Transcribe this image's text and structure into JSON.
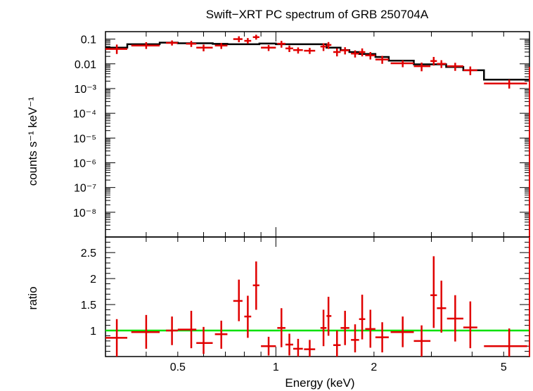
{
  "chart_data": [
    {
      "type": "scatter",
      "panel": "spectrum",
      "title": "Swift−XRT PC spectrum of GRB 250704A",
      "xlabel": "",
      "ylabel": "counts s⁻¹ keV⁻¹",
      "xscale": "log",
      "yscale": "log",
      "xlim": [
        0.3,
        6.0
      ],
      "ylim": [
        1e-09,
        0.2
      ],
      "yticks": [
        {
          "value": 0.1,
          "label": "0.1"
        },
        {
          "value": 0.01,
          "label": "0.01"
        },
        {
          "value": 0.001,
          "label": "10⁻³"
        },
        {
          "value": 0.0001,
          "label": "10⁻⁴"
        },
        {
          "value": 1e-05,
          "label": "10⁻⁵"
        },
        {
          "value": 1e-06,
          "label": "10⁻⁶"
        },
        {
          "value": 1e-07,
          "label": "10⁻⁷"
        },
        {
          "value": 1e-08,
          "label": "10⁻⁸"
        }
      ],
      "series": [
        {
          "color": "#e00000",
          "points": [
            {
              "x": 0.325,
              "xlo": 0.3,
              "xhi": 0.35,
              "y": 0.04,
              "ylo": 0.025,
              "yhi": 0.06
            },
            {
              "x": 0.4,
              "xlo": 0.36,
              "xhi": 0.44,
              "y": 0.055,
              "ylo": 0.04,
              "yhi": 0.075
            },
            {
              "x": 0.48,
              "xlo": 0.46,
              "xhi": 0.5,
              "y": 0.07,
              "ylo": 0.055,
              "yhi": 0.088
            },
            {
              "x": 0.55,
              "xlo": 0.53,
              "xhi": 0.57,
              "y": 0.065,
              "ylo": 0.048,
              "yhi": 0.085
            },
            {
              "x": 0.6,
              "xlo": 0.57,
              "xhi": 0.64,
              "y": 0.045,
              "ylo": 0.032,
              "yhi": 0.06
            },
            {
              "x": 0.68,
              "xlo": 0.65,
              "xhi": 0.71,
              "y": 0.055,
              "ylo": 0.04,
              "yhi": 0.07
            },
            {
              "x": 0.77,
              "xlo": 0.74,
              "xhi": 0.79,
              "y": 0.1,
              "ylo": 0.075,
              "yhi": 0.13
            },
            {
              "x": 0.82,
              "xlo": 0.8,
              "xhi": 0.84,
              "y": 0.085,
              "ylo": 0.065,
              "yhi": 0.11
            },
            {
              "x": 0.87,
              "xlo": 0.85,
              "xhi": 0.89,
              "y": 0.12,
              "ylo": 0.095,
              "yhi": 0.15
            },
            {
              "x": 0.95,
              "xlo": 0.9,
              "xhi": 1.0,
              "y": 0.045,
              "ylo": 0.033,
              "yhi": 0.058
            },
            {
              "x": 1.04,
              "xlo": 1.01,
              "xhi": 1.07,
              "y": 0.065,
              "ylo": 0.045,
              "yhi": 0.085
            },
            {
              "x": 1.1,
              "xlo": 1.07,
              "xhi": 1.13,
              "y": 0.042,
              "ylo": 0.03,
              "yhi": 0.055
            },
            {
              "x": 1.17,
              "xlo": 1.13,
              "xhi": 1.21,
              "y": 0.036,
              "ylo": 0.026,
              "yhi": 0.046
            },
            {
              "x": 1.27,
              "xlo": 1.22,
              "xhi": 1.32,
              "y": 0.034,
              "ylo": 0.025,
              "yhi": 0.044
            },
            {
              "x": 1.4,
              "xlo": 1.37,
              "xhi": 1.43,
              "y": 0.05,
              "ylo": 0.033,
              "yhi": 0.068
            },
            {
              "x": 1.45,
              "xlo": 1.43,
              "xhi": 1.48,
              "y": 0.058,
              "ylo": 0.04,
              "yhi": 0.076
            },
            {
              "x": 1.54,
              "xlo": 1.5,
              "xhi": 1.58,
              "y": 0.03,
              "ylo": 0.02,
              "yhi": 0.042
            },
            {
              "x": 1.63,
              "xlo": 1.58,
              "xhi": 1.68,
              "y": 0.035,
              "ylo": 0.024,
              "yhi": 0.047
            },
            {
              "x": 1.75,
              "xlo": 1.7,
              "xhi": 1.8,
              "y": 0.026,
              "ylo": 0.018,
              "yhi": 0.035
            },
            {
              "x": 1.84,
              "xlo": 1.8,
              "xhi": 1.88,
              "y": 0.03,
              "ylo": 0.02,
              "yhi": 0.042
            },
            {
              "x": 1.95,
              "xlo": 1.88,
              "xhi": 2.02,
              "y": 0.022,
              "ylo": 0.015,
              "yhi": 0.03
            },
            {
              "x": 2.12,
              "xlo": 2.02,
              "xhi": 2.22,
              "y": 0.015,
              "ylo": 0.01,
              "yhi": 0.021
            },
            {
              "x": 2.45,
              "xlo": 2.25,
              "xhi": 2.65,
              "y": 0.0105,
              "ylo": 0.0073,
              "yhi": 0.0138
            },
            {
              "x": 2.8,
              "xlo": 2.65,
              "xhi": 2.98,
              "y": 0.008,
              "ylo": 0.005,
              "yhi": 0.0112
            },
            {
              "x": 3.05,
              "xlo": 2.98,
              "xhi": 3.12,
              "y": 0.013,
              "ylo": 0.0085,
              "yhi": 0.019
            },
            {
              "x": 3.22,
              "xlo": 3.12,
              "xhi": 3.33,
              "y": 0.01,
              "ylo": 0.0068,
              "yhi": 0.014
            },
            {
              "x": 3.55,
              "xlo": 3.35,
              "xhi": 3.76,
              "y": 0.008,
              "ylo": 0.0052,
              "yhi": 0.011
            },
            {
              "x": 3.95,
              "xlo": 3.76,
              "xhi": 4.15,
              "y": 0.0055,
              "ylo": 0.0035,
              "yhi": 0.0078
            },
            {
              "x": 5.2,
              "xlo": 4.35,
              "xhi": 5.9,
              "y": 0.0016,
              "ylo": 0.001,
              "yhi": 0.0023
            }
          ]
        }
      ],
      "model": {
        "color": "#000000",
        "steps": [
          {
            "x0": 0.3,
            "x1": 0.35,
            "y": 0.045
          },
          {
            "x0": 0.35,
            "x1": 0.44,
            "y": 0.062
          },
          {
            "x0": 0.44,
            "x1": 0.5,
            "y": 0.072
          },
          {
            "x0": 0.5,
            "x1": 0.64,
            "y": 0.068
          },
          {
            "x0": 0.64,
            "x1": 0.71,
            "y": 0.064
          },
          {
            "x0": 0.71,
            "x1": 0.89,
            "y": 0.062
          },
          {
            "x0": 0.89,
            "x1": 1.0,
            "y": 0.066
          },
          {
            "x0": 1.0,
            "x1": 1.43,
            "y": 0.062
          },
          {
            "x0": 1.43,
            "x1": 1.58,
            "y": 0.045
          },
          {
            "x0": 1.58,
            "x1": 1.68,
            "y": 0.036
          },
          {
            "x0": 1.68,
            "x1": 1.8,
            "y": 0.03
          },
          {
            "x0": 1.8,
            "x1": 2.02,
            "y": 0.025
          },
          {
            "x0": 2.02,
            "x1": 2.22,
            "y": 0.019
          },
          {
            "x0": 2.22,
            "x1": 2.65,
            "y": 0.0135
          },
          {
            "x0": 2.65,
            "x1": 3.33,
            "y": 0.0095
          },
          {
            "x0": 3.33,
            "x1": 3.76,
            "y": 0.0075
          },
          {
            "x0": 3.76,
            "x1": 4.35,
            "y": 0.0055
          },
          {
            "x0": 4.35,
            "x1": 5.9,
            "y": 0.0023
          }
        ]
      }
    },
    {
      "type": "scatter",
      "panel": "ratio",
      "title": "",
      "xlabel": "Energy (keV)",
      "ylabel": "ratio",
      "xscale": "log",
      "yscale": "linear",
      "xlim": [
        0.3,
        6.0
      ],
      "ylim": [
        0.5,
        2.8
      ],
      "xticks": [
        {
          "value": 0.5,
          "label": "0.5"
        },
        {
          "value": 1,
          "label": "1"
        },
        {
          "value": 2,
          "label": "2"
        },
        {
          "value": 5,
          "label": "5"
        }
      ],
      "yticks": [
        {
          "value": 1,
          "label": "1"
        },
        {
          "value": 1.5,
          "label": "1.5"
        },
        {
          "value": 2,
          "label": "2"
        },
        {
          "value": 2.5,
          "label": "2.5"
        }
      ],
      "reference_line": {
        "y": 1.0,
        "color": "#00e000"
      },
      "series": [
        {
          "color": "#e00000",
          "points": [
            {
              "x": 0.325,
              "xlo": 0.3,
              "xhi": 0.35,
              "y": 0.86,
              "ylo": 0.5,
              "yhi": 1.22
            },
            {
              "x": 0.4,
              "xlo": 0.36,
              "xhi": 0.44,
              "y": 0.97,
              "ylo": 0.65,
              "yhi": 1.3
            },
            {
              "x": 0.48,
              "xlo": 0.46,
              "xhi": 0.5,
              "y": 1.0,
              "ylo": 0.72,
              "yhi": 1.27
            },
            {
              "x": 0.55,
              "xlo": 0.5,
              "xhi": 0.57,
              "y": 1.02,
              "ylo": 0.66,
              "yhi": 1.38
            },
            {
              "x": 0.6,
              "xlo": 0.57,
              "xhi": 0.64,
              "y": 0.76,
              "ylo": 0.55,
              "yhi": 1.07
            },
            {
              "x": 0.68,
              "xlo": 0.65,
              "xhi": 0.71,
              "y": 0.93,
              "ylo": 0.65,
              "yhi": 1.19
            },
            {
              "x": 0.77,
              "xlo": 0.74,
              "xhi": 0.79,
              "y": 1.57,
              "ylo": 1.18,
              "yhi": 1.98
            },
            {
              "x": 0.82,
              "xlo": 0.8,
              "xhi": 0.84,
              "y": 1.27,
              "ylo": 0.86,
              "yhi": 1.67
            },
            {
              "x": 0.87,
              "xlo": 0.85,
              "xhi": 0.89,
              "y": 1.87,
              "ylo": 1.4,
              "yhi": 2.33
            },
            {
              "x": 0.95,
              "xlo": 0.9,
              "xhi": 1.0,
              "y": 0.7,
              "ylo": 0.52,
              "yhi": 0.88
            },
            {
              "x": 1.04,
              "xlo": 1.01,
              "xhi": 1.07,
              "y": 1.05,
              "ylo": 0.68,
              "yhi": 1.43
            },
            {
              "x": 1.1,
              "xlo": 1.07,
              "xhi": 1.13,
              "y": 0.73,
              "ylo": 0.52,
              "yhi": 0.94
            },
            {
              "x": 1.17,
              "xlo": 1.13,
              "xhi": 1.21,
              "y": 0.65,
              "ylo": 0.5,
              "yhi": 0.84
            },
            {
              "x": 1.27,
              "xlo": 1.22,
              "xhi": 1.32,
              "y": 0.64,
              "ylo": 0.5,
              "yhi": 0.82
            },
            {
              "x": 1.4,
              "xlo": 1.37,
              "xhi": 1.43,
              "y": 1.05,
              "ylo": 0.7,
              "yhi": 1.4
            },
            {
              "x": 1.45,
              "xlo": 1.43,
              "xhi": 1.48,
              "y": 1.28,
              "ylo": 0.9,
              "yhi": 1.65
            },
            {
              "x": 1.54,
              "xlo": 1.5,
              "xhi": 1.58,
              "y": 0.72,
              "ylo": 0.5,
              "yhi": 1.0
            },
            {
              "x": 1.63,
              "xlo": 1.58,
              "xhi": 1.68,
              "y": 1.05,
              "ylo": 0.72,
              "yhi": 1.38
            },
            {
              "x": 1.75,
              "xlo": 1.7,
              "xhi": 1.8,
              "y": 0.82,
              "ylo": 0.58,
              "yhi": 1.12
            },
            {
              "x": 1.84,
              "xlo": 1.8,
              "xhi": 1.88,
              "y": 1.22,
              "ylo": 0.83,
              "yhi": 1.69
            },
            {
              "x": 1.95,
              "xlo": 1.88,
              "xhi": 2.02,
              "y": 1.03,
              "ylo": 0.67,
              "yhi": 1.4
            },
            {
              "x": 2.12,
              "xlo": 2.02,
              "xhi": 2.22,
              "y": 0.87,
              "ylo": 0.58,
              "yhi": 1.16
            },
            {
              "x": 2.45,
              "xlo": 2.25,
              "xhi": 2.65,
              "y": 0.97,
              "ylo": 0.68,
              "yhi": 1.27
            },
            {
              "x": 2.8,
              "xlo": 2.65,
              "xhi": 2.98,
              "y": 0.8,
              "ylo": 0.5,
              "yhi": 1.1
            },
            {
              "x": 3.05,
              "xlo": 2.98,
              "xhi": 3.12,
              "y": 1.68,
              "ylo": 1.05,
              "yhi": 2.43
            },
            {
              "x": 3.22,
              "xlo": 3.12,
              "xhi": 3.33,
              "y": 1.43,
              "ylo": 0.96,
              "yhi": 1.96
            },
            {
              "x": 3.55,
              "xlo": 3.35,
              "xhi": 3.76,
              "y": 1.23,
              "ylo": 0.79,
              "yhi": 1.68
            },
            {
              "x": 3.95,
              "xlo": 3.76,
              "xhi": 4.15,
              "y": 1.06,
              "ylo": 0.66,
              "yhi": 1.56
            },
            {
              "x": 5.2,
              "xlo": 4.35,
              "xhi": 5.9,
              "y": 0.7,
              "ylo": 0.5,
              "yhi": 1.04
            }
          ]
        }
      ]
    }
  ]
}
